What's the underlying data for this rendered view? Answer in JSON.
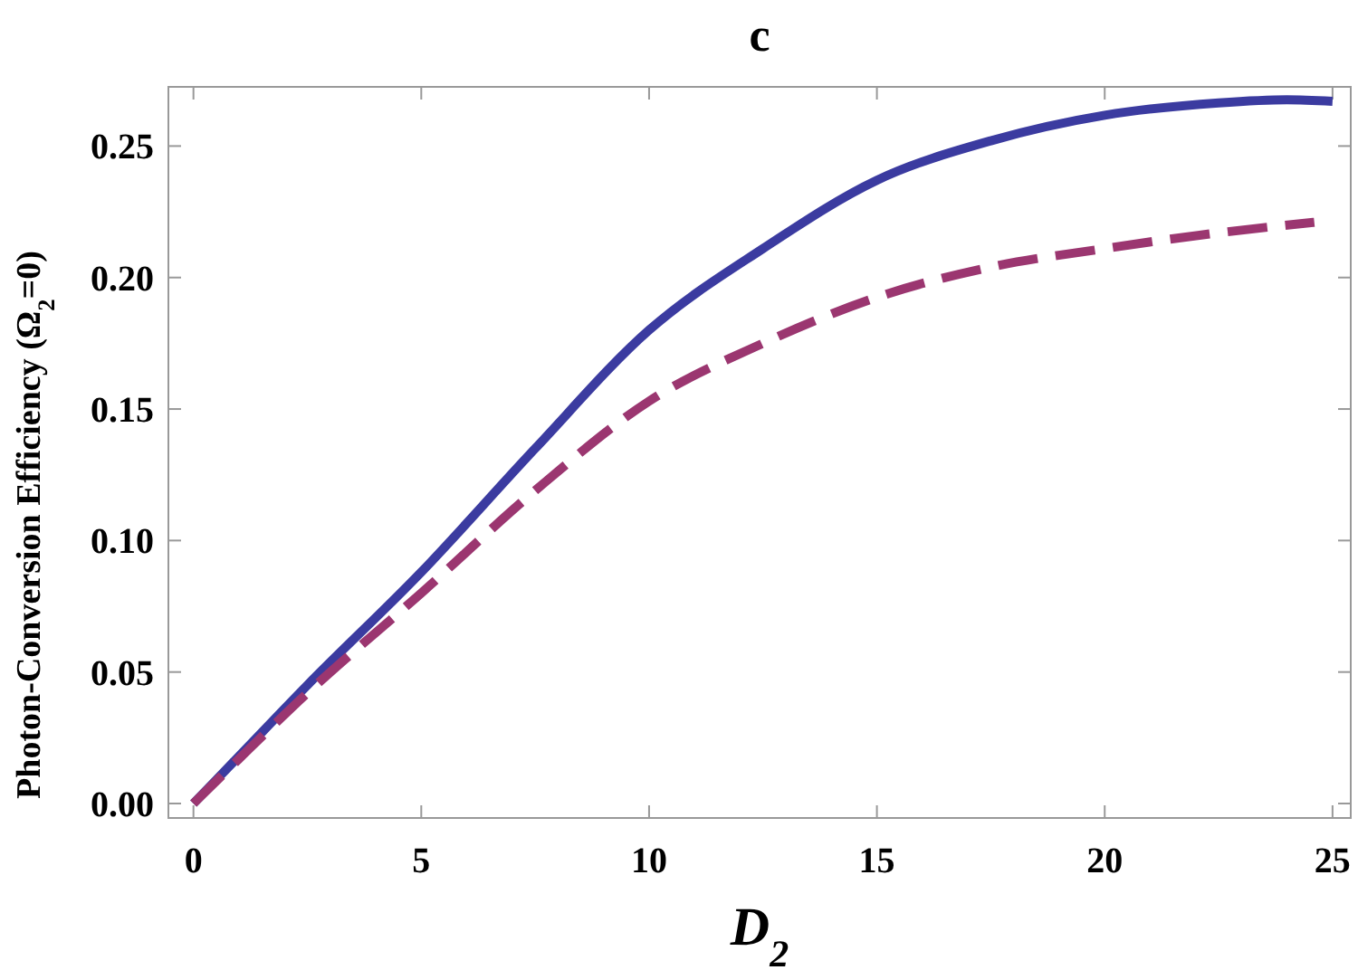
{
  "chart_data": {
    "type": "line",
    "title": "c",
    "xlabel": "D$_{2}$",
    "ylabel": "Photon-Conversion Efficiency (Ω$_{2}$=0)",
    "xlim": [
      -0.55,
      25.4
    ],
    "ylim": [
      -0.0055,
      0.2725
    ],
    "xticks": [
      0,
      5,
      10,
      15,
      20,
      25
    ],
    "yticks": [
      {
        "value": 0,
        "label": "0.00"
      },
      {
        "value": 0.05,
        "label": "0.05"
      },
      {
        "value": 0.1,
        "label": "0.10"
      },
      {
        "value": 0.15,
        "label": "0.15"
      },
      {
        "value": 0.2,
        "label": "0.20"
      },
      {
        "value": 0.25,
        "label": "0.25"
      }
    ],
    "grid": false,
    "series": [
      {
        "color": "#3b3ba0",
        "line_style": "solid",
        "x": [
          0,
          1,
          2.5,
          5,
          7.5,
          10,
          12.5,
          15,
          17.5,
          20,
          22.5,
          24,
          25
        ],
        "values": [
          0,
          0.018,
          0.045,
          0.088,
          0.135,
          0.18,
          0.211,
          0.237,
          0.252,
          0.2617,
          0.2664,
          0.2676,
          0.267
        ]
      },
      {
        "color": "#9b3670",
        "line_style": "dashed",
        "x": [
          0,
          1,
          2.5,
          5,
          7.5,
          10,
          12.5,
          15,
          17.5,
          20,
          22.5,
          24.6
        ],
        "values": [
          0,
          0.017,
          0.042,
          0.08,
          0.119,
          0.153,
          0.175,
          0.1925,
          0.204,
          0.211,
          0.217,
          0.221
        ]
      }
    ]
  }
}
